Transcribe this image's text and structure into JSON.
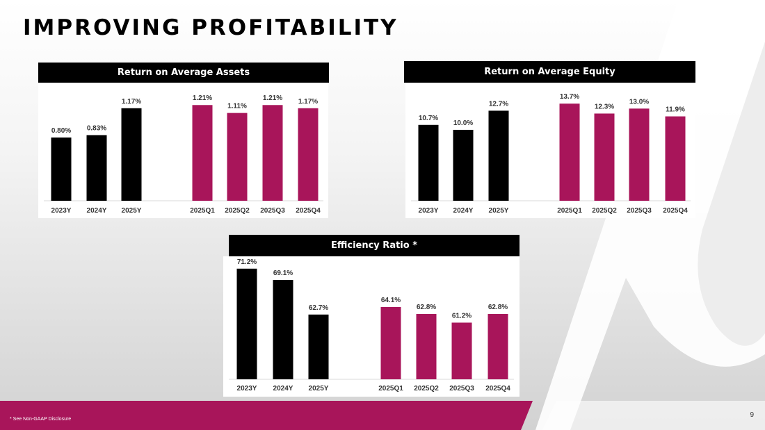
{
  "slide": {
    "title": "IMPROVING PROFITABILITY",
    "footnote": "* See Non-GAAP Disclosure",
    "page_number": "9"
  },
  "colors": {
    "historical_bar": "#000000",
    "quarterly_bar": "#A8155A",
    "label_text": "#333333",
    "header_bg": "#000000"
  },
  "chart_data": [
    {
      "id": "roaa",
      "type": "bar",
      "title": "Return on Average Assets",
      "categories": [
        "2023Y",
        "2024Y",
        "2025Y",
        "2025Q1",
        "2025Q2",
        "2025Q3",
        "2025Q4"
      ],
      "values": [
        0.8,
        0.83,
        1.17,
        1.21,
        1.11,
        1.21,
        1.17
      ],
      "data_labels": [
        "0.80%",
        "0.83%",
        "1.17%",
        "1.21%",
        "1.11%",
        "1.21%",
        "1.17%"
      ],
      "unit": "%",
      "ylim": [
        0,
        1.3
      ],
      "grid": false,
      "legend": "none"
    },
    {
      "id": "roae",
      "type": "bar",
      "title": "Return on Average Equity",
      "categories": [
        "2023Y",
        "2024Y",
        "2025Y",
        "2025Q1",
        "2025Q2",
        "2025Q3",
        "2025Q4"
      ],
      "values": [
        10.7,
        10.0,
        12.7,
        13.7,
        12.3,
        13.0,
        11.9
      ],
      "data_labels": [
        "10.7%",
        "10.0%",
        "12.7%",
        "13.7%",
        "12.3%",
        "13.0%",
        "11.9%"
      ],
      "unit": "%",
      "ylim": [
        0,
        14.5
      ],
      "grid": false,
      "legend": "none"
    },
    {
      "id": "efficiency",
      "type": "bar",
      "title": "Efficiency Ratio *",
      "categories": [
        "2023Y",
        "2024Y",
        "2025Y",
        "2025Q1",
        "2025Q2",
        "2025Q3",
        "2025Q4"
      ],
      "values": [
        71.2,
        69.1,
        62.7,
        64.1,
        62.8,
        61.2,
        62.8
      ],
      "data_labels": [
        "71.2%",
        "69.1%",
        "62.7%",
        "64.1%",
        "62.8%",
        "61.2%",
        "62.8%"
      ],
      "unit": "%",
      "ylim": [
        50.7,
        72.2
      ],
      "grid": false,
      "legend": "none"
    }
  ]
}
